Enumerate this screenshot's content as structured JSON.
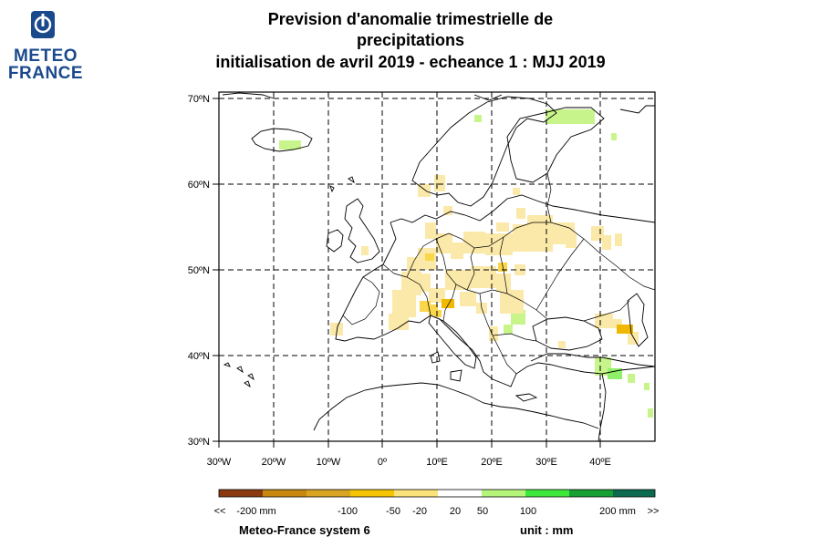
{
  "logo": {
    "line1": "METEO",
    "line2": "FRANCE",
    "icon": "meteo-france-logo-icon",
    "color": "#1b4a8c"
  },
  "title": {
    "line1": "Prevision d'anomalie trimestrielle de",
    "line2": "precipitations",
    "line3": "initialisation de avril 2019  -  echeance 1 : MJJ 2019"
  },
  "map": {
    "lat_labels": [
      "70ºN",
      "60ºN",
      "50ºN",
      "40ºN",
      "30ºN"
    ],
    "lon_labels": [
      "30ºW",
      "20ºW",
      "10ºW",
      "0º",
      "10ºE",
      "20ºE",
      "30ºE",
      "40ºE"
    ],
    "grid": true,
    "anomaly_colors": {
      "dry_light": "#fbe9a9",
      "dry_medium": "#fad64a",
      "dry_strong": "#f0b800",
      "wet_light": "#c8f58b",
      "wet_medium": "#8ff06a"
    }
  },
  "colorbar": {
    "labels": [
      "<<",
      "-200 mm",
      "-100",
      "-50",
      "-20",
      "20",
      "50",
      "100",
      "200 mm",
      ">>"
    ],
    "colors": [
      "#8b3a0f",
      "#c8880f",
      "#d9a422",
      "#f5c400",
      "#fbe37a",
      "#ffffff",
      "#b4f57a",
      "#3de83d",
      "#16a034",
      "#0b6a4f"
    ]
  },
  "footer": {
    "left": "Meteo-France system 6",
    "right": "unit :  mm"
  }
}
